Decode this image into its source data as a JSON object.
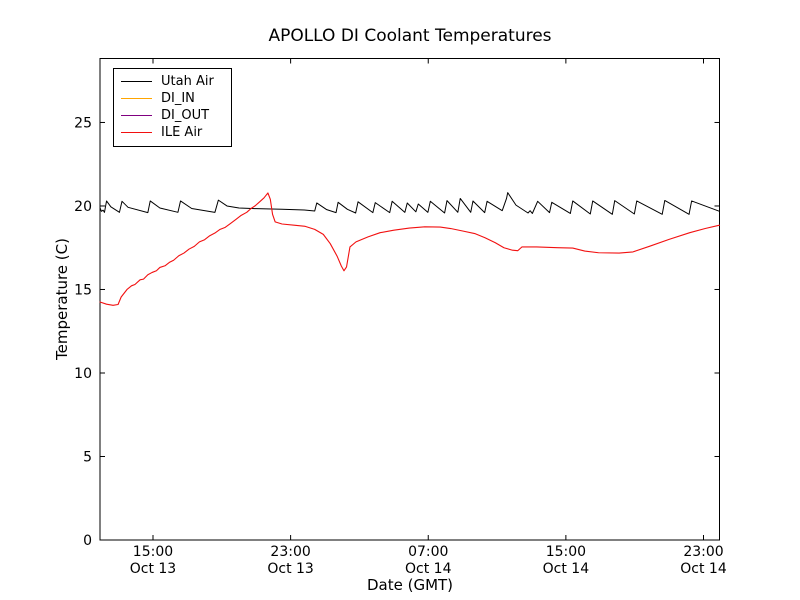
{
  "chart": {
    "title": "APOLLO DI Coolant Temperatures",
    "xlabel": "Date (GMT)",
    "ylabel": "Temperature (C)"
  },
  "chart_data": {
    "type": "line",
    "title": "APOLLO DI Coolant Temperatures",
    "xlabel": "Date (GMT)",
    "ylabel": "Temperature (C)",
    "x_unit": "hours since Oct 13 12:00 GMT",
    "xlim": [
      -0.08,
      35.93
    ],
    "ylim": [
      0,
      28.83
    ],
    "grid": false,
    "legend_position": "upper left",
    "y_ticks": [
      {
        "value": 0,
        "label": "0"
      },
      {
        "value": 5,
        "label": "5"
      },
      {
        "value": 10,
        "label": "10"
      },
      {
        "value": 15,
        "label": "15"
      },
      {
        "value": 20,
        "label": "20"
      },
      {
        "value": 25,
        "label": "25"
      }
    ],
    "x_ticks": [
      {
        "t": 3,
        "time": "15:00",
        "date": "Oct 13"
      },
      {
        "t": 11,
        "time": "23:00",
        "date": "Oct 13"
      },
      {
        "t": 19,
        "time": "07:00",
        "date": "Oct 14"
      },
      {
        "t": 27,
        "time": "15:00",
        "date": "Oct 14"
      },
      {
        "t": 35,
        "time": "23:00",
        "date": "Oct 14"
      }
    ],
    "series": [
      {
        "name": "Utah Air",
        "color": "#000000",
        "width": 1,
        "points": [
          [
            -0.08,
            19.9
          ],
          [
            0.0,
            19.68
          ],
          [
            0.1,
            19.75
          ],
          [
            0.18,
            19.62
          ],
          [
            0.3,
            20.3
          ],
          [
            0.55,
            19.95
          ],
          [
            1.05,
            19.62
          ],
          [
            1.2,
            20.28
          ],
          [
            1.55,
            19.92
          ],
          [
            2.7,
            19.6
          ],
          [
            2.84,
            20.3
          ],
          [
            3.4,
            19.88
          ],
          [
            4.45,
            19.62
          ],
          [
            4.6,
            20.3
          ],
          [
            5.25,
            19.85
          ],
          [
            6.6,
            19.62
          ],
          [
            6.8,
            20.35
          ],
          [
            7.3,
            20.0
          ],
          [
            8.0,
            19.88
          ],
          [
            9.0,
            19.84
          ],
          [
            10.5,
            19.8
          ],
          [
            11.8,
            19.76
          ],
          [
            12.4,
            19.7
          ],
          [
            12.52,
            20.18
          ],
          [
            13.1,
            19.78
          ],
          [
            13.64,
            19.6
          ],
          [
            13.76,
            20.22
          ],
          [
            14.3,
            19.8
          ],
          [
            14.78,
            19.58
          ],
          [
            14.92,
            20.25
          ],
          [
            15.78,
            19.6
          ],
          [
            15.92,
            20.2
          ],
          [
            16.76,
            19.6
          ],
          [
            16.9,
            20.28
          ],
          [
            17.64,
            19.62
          ],
          [
            17.78,
            20.18
          ],
          [
            18.28,
            19.65
          ],
          [
            18.42,
            20.12
          ],
          [
            18.98,
            19.62
          ],
          [
            19.12,
            20.28
          ],
          [
            19.95,
            19.58
          ],
          [
            20.09,
            20.32
          ],
          [
            20.72,
            19.62
          ],
          [
            20.86,
            20.45
          ],
          [
            21.47,
            19.62
          ],
          [
            21.6,
            20.3
          ],
          [
            22.28,
            19.6
          ],
          [
            22.42,
            20.28
          ],
          [
            23.3,
            19.72
          ],
          [
            23.55,
            20.45
          ],
          [
            23.62,
            20.8
          ],
          [
            24.1,
            20.05
          ],
          [
            24.8,
            19.58
          ],
          [
            24.92,
            19.72
          ],
          [
            25.05,
            19.55
          ],
          [
            25.36,
            20.28
          ],
          [
            26.05,
            19.6
          ],
          [
            26.18,
            20.22
          ],
          [
            27.26,
            19.55
          ],
          [
            27.4,
            20.3
          ],
          [
            28.42,
            19.52
          ],
          [
            28.56,
            20.3
          ],
          [
            29.7,
            19.5
          ],
          [
            29.84,
            20.32
          ],
          [
            30.98,
            19.52
          ],
          [
            31.12,
            20.3
          ],
          [
            32.6,
            19.5
          ],
          [
            32.75,
            20.33
          ],
          [
            34.16,
            19.5
          ],
          [
            34.31,
            20.3
          ],
          [
            35.93,
            19.68
          ]
        ]
      },
      {
        "name": "DI_IN",
        "color": "#ffa500",
        "width": 1,
        "points": []
      },
      {
        "name": "DI_OUT",
        "color": "#800080",
        "width": 1,
        "points": []
      },
      {
        "name": "ILE Air",
        "color": "#f21010",
        "width": 1.1,
        "points": [
          [
            -0.08,
            14.25
          ],
          [
            0.3,
            14.12
          ],
          [
            0.68,
            14.05
          ],
          [
            0.97,
            14.1
          ],
          [
            1.15,
            14.55
          ],
          [
            1.49,
            15.0
          ],
          [
            1.75,
            15.22
          ],
          [
            1.95,
            15.3
          ],
          [
            2.25,
            15.58
          ],
          [
            2.45,
            15.62
          ],
          [
            2.7,
            15.88
          ],
          [
            2.95,
            16.02
          ],
          [
            3.2,
            16.12
          ],
          [
            3.4,
            16.32
          ],
          [
            3.7,
            16.42
          ],
          [
            3.95,
            16.62
          ],
          [
            4.2,
            16.75
          ],
          [
            4.5,
            17.02
          ],
          [
            4.8,
            17.18
          ],
          [
            5.1,
            17.42
          ],
          [
            5.4,
            17.58
          ],
          [
            5.7,
            17.85
          ],
          [
            6.0,
            17.98
          ],
          [
            6.3,
            18.22
          ],
          [
            6.6,
            18.38
          ],
          [
            6.9,
            18.6
          ],
          [
            7.2,
            18.72
          ],
          [
            7.5,
            18.95
          ],
          [
            7.8,
            19.18
          ],
          [
            8.1,
            19.42
          ],
          [
            8.45,
            19.62
          ],
          [
            8.7,
            19.85
          ],
          [
            8.95,
            20.02
          ],
          [
            9.2,
            20.25
          ],
          [
            9.45,
            20.48
          ],
          [
            9.68,
            20.78
          ],
          [
            9.82,
            20.4
          ],
          [
            9.95,
            19.5
          ],
          [
            10.1,
            19.05
          ],
          [
            10.5,
            18.92
          ],
          [
            11.2,
            18.85
          ],
          [
            11.85,
            18.78
          ],
          [
            12.4,
            18.6
          ],
          [
            12.9,
            18.3
          ],
          [
            13.3,
            17.75
          ],
          [
            13.7,
            17.0
          ],
          [
            13.95,
            16.4
          ],
          [
            14.1,
            16.12
          ],
          [
            14.25,
            16.35
          ],
          [
            14.45,
            17.55
          ],
          [
            14.8,
            17.85
          ],
          [
            15.5,
            18.15
          ],
          [
            16.2,
            18.4
          ],
          [
            17.0,
            18.55
          ],
          [
            17.9,
            18.68
          ],
          [
            18.8,
            18.75
          ],
          [
            19.7,
            18.74
          ],
          [
            20.3,
            18.65
          ],
          [
            21.0,
            18.5
          ],
          [
            21.7,
            18.35
          ],
          [
            22.3,
            18.1
          ],
          [
            22.9,
            17.8
          ],
          [
            23.4,
            17.5
          ],
          [
            23.9,
            17.35
          ],
          [
            24.2,
            17.32
          ],
          [
            24.45,
            17.55
          ],
          [
            25.3,
            17.55
          ],
          [
            26.5,
            17.5
          ],
          [
            27.4,
            17.48
          ],
          [
            28.1,
            17.3
          ],
          [
            28.9,
            17.2
          ],
          [
            30.1,
            17.18
          ],
          [
            30.9,
            17.25
          ],
          [
            31.9,
            17.6
          ],
          [
            33.0,
            18.0
          ],
          [
            34.2,
            18.4
          ],
          [
            35.1,
            18.65
          ],
          [
            35.93,
            18.85
          ]
        ]
      }
    ]
  }
}
